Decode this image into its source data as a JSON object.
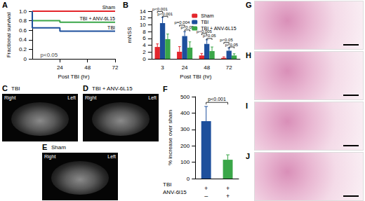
{
  "chart_data": [
    {
      "panel": "A",
      "type": "line",
      "line_style": "step",
      "x_label": "Post TBI (hr)",
      "y_label": "Fractional survival",
      "xlim": [
        0,
        72
      ],
      "xticks": [
        24,
        48,
        72
      ],
      "ylim": [
        0,
        1
      ],
      "yticks": [
        0,
        0.2,
        0.4,
        0.6,
        0.8,
        {
          "value": 1,
          "label": "1.0"
        }
      ],
      "x": [
        0,
        0,
        24,
        72
      ],
      "series": [
        {
          "name": "Sham",
          "color": "#e3262c",
          "values": [
            1,
            1,
            1,
            1
          ]
        },
        {
          "name": "TBI + ANV-6L15",
          "color": "#3aa648",
          "values": [
            1,
            0.8,
            0.77,
            0.77
          ]
        },
        {
          "name": "TBI",
          "color": "#1d4f9c",
          "values": [
            1,
            0.65,
            0.58,
            0.58
          ]
        }
      ],
      "annotations": [
        {
          "text": "p<0.05",
          "x": 4,
          "y": 0.08
        }
      ]
    },
    {
      "panel": "B",
      "type": "bar",
      "legend": "top-right",
      "x_label": "Post TBI (hr)",
      "y_label": "mNSS",
      "categories": [
        "3",
        "24",
        "48",
        "72"
      ],
      "ylim": [
        0,
        14
      ],
      "yticks": [
        0,
        2,
        4,
        6,
        8,
        10,
        12,
        14
      ],
      "series": [
        {
          "name": "Sham",
          "color": "#e3262c",
          "values": [
            3.5,
            2.1,
            1.0,
            0.3
          ],
          "errors": [
            0.9,
            1.5,
            0.6,
            0.3
          ]
        },
        {
          "name": "TBI",
          "color": "#1d4f9c",
          "values": [
            10.5,
            6.7,
            4.4,
            2.4
          ],
          "errors": [
            1.7,
            1.3,
            1.2,
            0.8
          ]
        },
        {
          "name": "TBI + ANV-6L15",
          "color": "#3aa648",
          "values": [
            5.8,
            3.3,
            2.3,
            1.0
          ],
          "errors": [
            1.5,
            1.7,
            1.2,
            0.5
          ]
        }
      ],
      "annotations": [
        {
          "text": "p<0.001",
          "category": "3",
          "from": "Sham",
          "to": "TBI",
          "y": 13.9
        },
        {
          "text": "p<0.001",
          "category": "3",
          "from": "TBI",
          "to": "TBI + ANV-6L15",
          "y": 12.5
        },
        {
          "text": "p=0.004",
          "category": "24",
          "from": "Sham",
          "to": "TBI",
          "y": 9.9
        },
        {
          "text": "p<0.05",
          "category": "24",
          "from": "TBI",
          "to": "TBI + ANV-6L15",
          "y": 8.5
        },
        {
          "text": "p<0.005",
          "category": "48",
          "from": "Sham",
          "to": "TBI",
          "y": 7.4
        },
        {
          "text": "p<0.05",
          "category": "48",
          "from": "TBI",
          "to": "TBI + ANV-6L15",
          "y": 6.0
        },
        {
          "text": "p<0.05",
          "category": "72",
          "from": "Sham",
          "to": "TBI",
          "y": 4.8
        },
        {
          "text": "p<0.05",
          "category": "72",
          "from": "TBI",
          "to": "TBI + ANV-6L15",
          "y": 3.5
        }
      ]
    },
    {
      "panel": "F",
      "type": "bar",
      "y_label": "% increase over sham",
      "ylim": [
        0,
        500
      ],
      "yticks": [
        0,
        100,
        200,
        300,
        400,
        500
      ],
      "x_rows": [
        {
          "label": "TBI",
          "values": [
            "+",
            "+"
          ]
        },
        {
          "label": "ANV-6l15",
          "values": [
            "–",
            "+"
          ]
        }
      ],
      "values": [
        350,
        115
      ],
      "errors": [
        90,
        30
      ],
      "colors": [
        "#1d4f9c",
        "#3aa648"
      ],
      "annotations": [
        {
          "text": "p<0.001",
          "from": 0,
          "to": 1,
          "y": 465
        }
      ]
    }
  ],
  "images": [
    {
      "panel": "C",
      "title": "TBI",
      "left_text": "Right",
      "right_text": "Left"
    },
    {
      "panel": "D",
      "title": "TBI + ANV-6L15",
      "left_text": "Right",
      "right_text": "Left"
    },
    {
      "panel": "E",
      "title": "Sham",
      "left_text": "Right",
      "right_text": "Left"
    }
  ],
  "histology": [
    {
      "panel": "G"
    },
    {
      "panel": "H"
    },
    {
      "panel": "I"
    },
    {
      "panel": "J"
    }
  ]
}
